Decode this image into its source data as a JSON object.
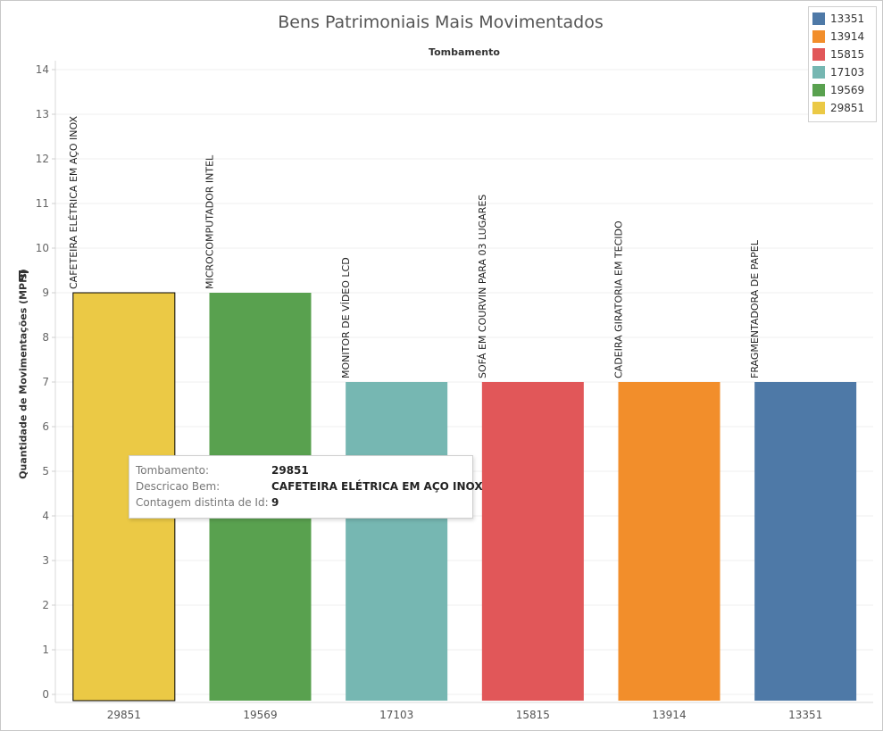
{
  "chart_data": {
    "type": "bar",
    "title": "Bens Patrimoniais Mais Movimentados",
    "x_header": "Tombamento",
    "ylabel": "Quantidade de Movimentações (MPIs)",
    "ylim": [
      0,
      14
    ],
    "yticks": [
      0,
      1,
      2,
      3,
      4,
      5,
      6,
      7,
      8,
      9,
      10,
      11,
      12,
      13,
      14
    ],
    "grid": true,
    "legend_position": "top-right",
    "categories": [
      "29851",
      "19569",
      "17103",
      "15815",
      "13914",
      "13351"
    ],
    "descriptions": [
      "CAFETEIRA ELÉTRICA EM AÇO INOX",
      "MICROCOMPUTADOR INTEL",
      "MONITOR DE VÍDEO LCD",
      "SOFÁ EM COURVIN PARA 03 LUGARES",
      "CADEIRA GIRATORIA EM TECIDO",
      "FRAGMENTADORA DE PAPEL"
    ],
    "values": [
      9,
      9,
      7,
      7,
      7,
      7
    ],
    "colors": [
      "#ebc945",
      "#59a14f",
      "#76b7b2",
      "#e15759",
      "#f28e2b",
      "#4e79a7"
    ],
    "selected_index": 0
  },
  "legend": {
    "items": [
      {
        "label": "13351",
        "color": "#4e79a7"
      },
      {
        "label": "13914",
        "color": "#f28e2b"
      },
      {
        "label": "15815",
        "color": "#e15759"
      },
      {
        "label": "17103",
        "color": "#76b7b2"
      },
      {
        "label": "19569",
        "color": "#59a14f"
      },
      {
        "label": "29851",
        "color": "#ebc945"
      }
    ]
  },
  "tooltip": {
    "rows": [
      {
        "key": "Tombamento:",
        "value": "29851"
      },
      {
        "key": "Descricao Bem:",
        "value": "CAFETEIRA ELÉTRICA EM AÇO INOX"
      },
      {
        "key": "Contagem distinta de Id:",
        "value": "9"
      }
    ]
  },
  "icons": {
    "sort": "sort-descending-icon"
  }
}
